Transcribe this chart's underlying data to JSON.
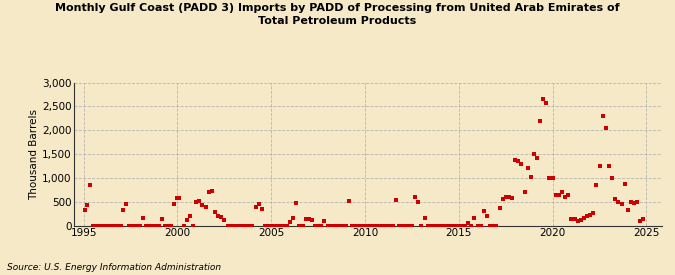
{
  "title": "Monthly Gulf Coast (PADD 3) Imports by PADD of Processing from United Arab Emirates of\nTotal Petroleum Products",
  "ylabel": "Thousand Barrels",
  "source": "Source: U.S. Energy Information Administration",
  "bg_color": "#f5e9c8",
  "plot_bg_color": "#f5e9c8",
  "marker_color": "#cc0000",
  "ylim": [
    0,
    3000
  ],
  "yticks": [
    0,
    500,
    1000,
    1500,
    2000,
    2500,
    3000
  ],
  "xlim": [
    1994.5,
    2025.8
  ],
  "xticks": [
    1995,
    2000,
    2005,
    2010,
    2015,
    2020,
    2025
  ],
  "data": [
    [
      1995.08,
      330
    ],
    [
      1995.17,
      420
    ],
    [
      1995.33,
      860
    ],
    [
      1997.08,
      320
    ],
    [
      1997.25,
      450
    ],
    [
      1998.17,
      160
    ],
    [
      1999.17,
      130
    ],
    [
      1999.83,
      460
    ],
    [
      2000.0,
      580
    ],
    [
      2000.08,
      580
    ],
    [
      2000.5,
      120
    ],
    [
      2000.67,
      200
    ],
    [
      2001.0,
      500
    ],
    [
      2001.17,
      520
    ],
    [
      2001.33,
      440
    ],
    [
      2001.5,
      380
    ],
    [
      2001.67,
      700
    ],
    [
      2001.83,
      720
    ],
    [
      2002.0,
      290
    ],
    [
      2002.17,
      190
    ],
    [
      2002.33,
      170
    ],
    [
      2002.5,
      110
    ],
    [
      2004.17,
      380
    ],
    [
      2004.33,
      460
    ],
    [
      2004.5,
      350
    ],
    [
      2006.0,
      70
    ],
    [
      2006.17,
      150
    ],
    [
      2006.33,
      470
    ],
    [
      2006.83,
      140
    ],
    [
      2007.0,
      140
    ],
    [
      2007.17,
      120
    ],
    [
      2007.83,
      100
    ],
    [
      2009.17,
      510
    ],
    [
      2011.67,
      540
    ],
    [
      2012.67,
      600
    ],
    [
      2012.83,
      490
    ],
    [
      2013.17,
      150
    ],
    [
      2015.5,
      50
    ],
    [
      2015.83,
      160
    ],
    [
      2016.33,
      300
    ],
    [
      2016.5,
      200
    ],
    [
      2017.17,
      360
    ],
    [
      2017.33,
      550
    ],
    [
      2017.5,
      600
    ],
    [
      2017.67,
      600
    ],
    [
      2017.83,
      580
    ],
    [
      2018.0,
      1380
    ],
    [
      2018.17,
      1350
    ],
    [
      2018.33,
      1280
    ],
    [
      2018.5,
      700
    ],
    [
      2018.67,
      1200
    ],
    [
      2018.83,
      1020
    ],
    [
      2019.0,
      1500
    ],
    [
      2019.17,
      1420
    ],
    [
      2019.33,
      2200
    ],
    [
      2019.5,
      2650
    ],
    [
      2019.67,
      2580
    ],
    [
      2019.83,
      1000
    ],
    [
      2020.0,
      1000
    ],
    [
      2020.17,
      650
    ],
    [
      2020.33,
      640
    ],
    [
      2020.5,
      700
    ],
    [
      2020.67,
      600
    ],
    [
      2020.83,
      650
    ],
    [
      2021.0,
      140
    ],
    [
      2021.17,
      130
    ],
    [
      2021.33,
      100
    ],
    [
      2021.5,
      110
    ],
    [
      2021.67,
      160
    ],
    [
      2021.83,
      200
    ],
    [
      2022.0,
      230
    ],
    [
      2022.17,
      270
    ],
    [
      2022.33,
      850
    ],
    [
      2022.5,
      1250
    ],
    [
      2022.67,
      2300
    ],
    [
      2022.83,
      2050
    ],
    [
      2023.0,
      1250
    ],
    [
      2023.17,
      1000
    ],
    [
      2023.33,
      560
    ],
    [
      2023.5,
      490
    ],
    [
      2023.67,
      450
    ],
    [
      2023.83,
      880
    ],
    [
      2024.0,
      320
    ],
    [
      2024.17,
      500
    ],
    [
      2024.33,
      480
    ],
    [
      2024.5,
      500
    ],
    [
      2024.67,
      100
    ],
    [
      2024.83,
      140
    ]
  ],
  "zero_data": [
    [
      1995.5,
      0
    ],
    [
      1995.67,
      0
    ],
    [
      1995.83,
      0
    ],
    [
      1996.0,
      0
    ],
    [
      1996.17,
      0
    ],
    [
      1996.33,
      0
    ],
    [
      1996.5,
      0
    ],
    [
      1996.67,
      0
    ],
    [
      1996.83,
      0
    ],
    [
      1997.0,
      0
    ],
    [
      1997.42,
      0
    ],
    [
      1997.58,
      0
    ],
    [
      1997.75,
      0
    ],
    [
      1997.92,
      0
    ],
    [
      1998.0,
      0
    ],
    [
      1998.33,
      0
    ],
    [
      1998.5,
      0
    ],
    [
      1998.67,
      0
    ],
    [
      1998.83,
      0
    ],
    [
      1999.0,
      0
    ],
    [
      1999.33,
      0
    ],
    [
      1999.5,
      0
    ],
    [
      1999.67,
      0
    ],
    [
      2000.33,
      0
    ],
    [
      2000.83,
      0
    ],
    [
      2002.67,
      0
    ],
    [
      2002.83,
      0
    ],
    [
      2003.0,
      0
    ],
    [
      2003.17,
      0
    ],
    [
      2003.33,
      0
    ],
    [
      2003.5,
      0
    ],
    [
      2003.67,
      0
    ],
    [
      2003.83,
      0
    ],
    [
      2004.0,
      0
    ],
    [
      2004.67,
      0
    ],
    [
      2004.83,
      0
    ],
    [
      2005.0,
      0
    ],
    [
      2005.17,
      0
    ],
    [
      2005.33,
      0
    ],
    [
      2005.5,
      0
    ],
    [
      2005.67,
      0
    ],
    [
      2005.83,
      0
    ],
    [
      2006.5,
      0
    ],
    [
      2006.67,
      0
    ],
    [
      2007.33,
      0
    ],
    [
      2007.5,
      0
    ],
    [
      2007.67,
      0
    ],
    [
      2008.0,
      0
    ],
    [
      2008.17,
      0
    ],
    [
      2008.33,
      0
    ],
    [
      2008.5,
      0
    ],
    [
      2008.67,
      0
    ],
    [
      2008.83,
      0
    ],
    [
      2009.0,
      0
    ],
    [
      2009.33,
      0
    ],
    [
      2009.5,
      0
    ],
    [
      2009.67,
      0
    ],
    [
      2009.83,
      0
    ],
    [
      2010.0,
      0
    ],
    [
      2010.17,
      0
    ],
    [
      2010.33,
      0
    ],
    [
      2010.5,
      0
    ],
    [
      2010.67,
      0
    ],
    [
      2010.83,
      0
    ],
    [
      2011.0,
      0
    ],
    [
      2011.17,
      0
    ],
    [
      2011.33,
      0
    ],
    [
      2011.5,
      0
    ],
    [
      2011.83,
      0
    ],
    [
      2012.0,
      0
    ],
    [
      2012.17,
      0
    ],
    [
      2012.33,
      0
    ],
    [
      2012.5,
      0
    ],
    [
      2013.0,
      0
    ],
    [
      2013.33,
      0
    ],
    [
      2013.5,
      0
    ],
    [
      2013.67,
      0
    ],
    [
      2013.83,
      0
    ],
    [
      2014.0,
      0
    ],
    [
      2014.17,
      0
    ],
    [
      2014.33,
      0
    ],
    [
      2014.5,
      0
    ],
    [
      2014.67,
      0
    ],
    [
      2014.83,
      0
    ],
    [
      2015.0,
      0
    ],
    [
      2015.17,
      0
    ],
    [
      2015.33,
      0
    ],
    [
      2015.67,
      0
    ],
    [
      2016.0,
      0
    ],
    [
      2016.17,
      0
    ],
    [
      2016.67,
      0
    ],
    [
      2016.83,
      0
    ],
    [
      2017.0,
      0
    ]
  ]
}
